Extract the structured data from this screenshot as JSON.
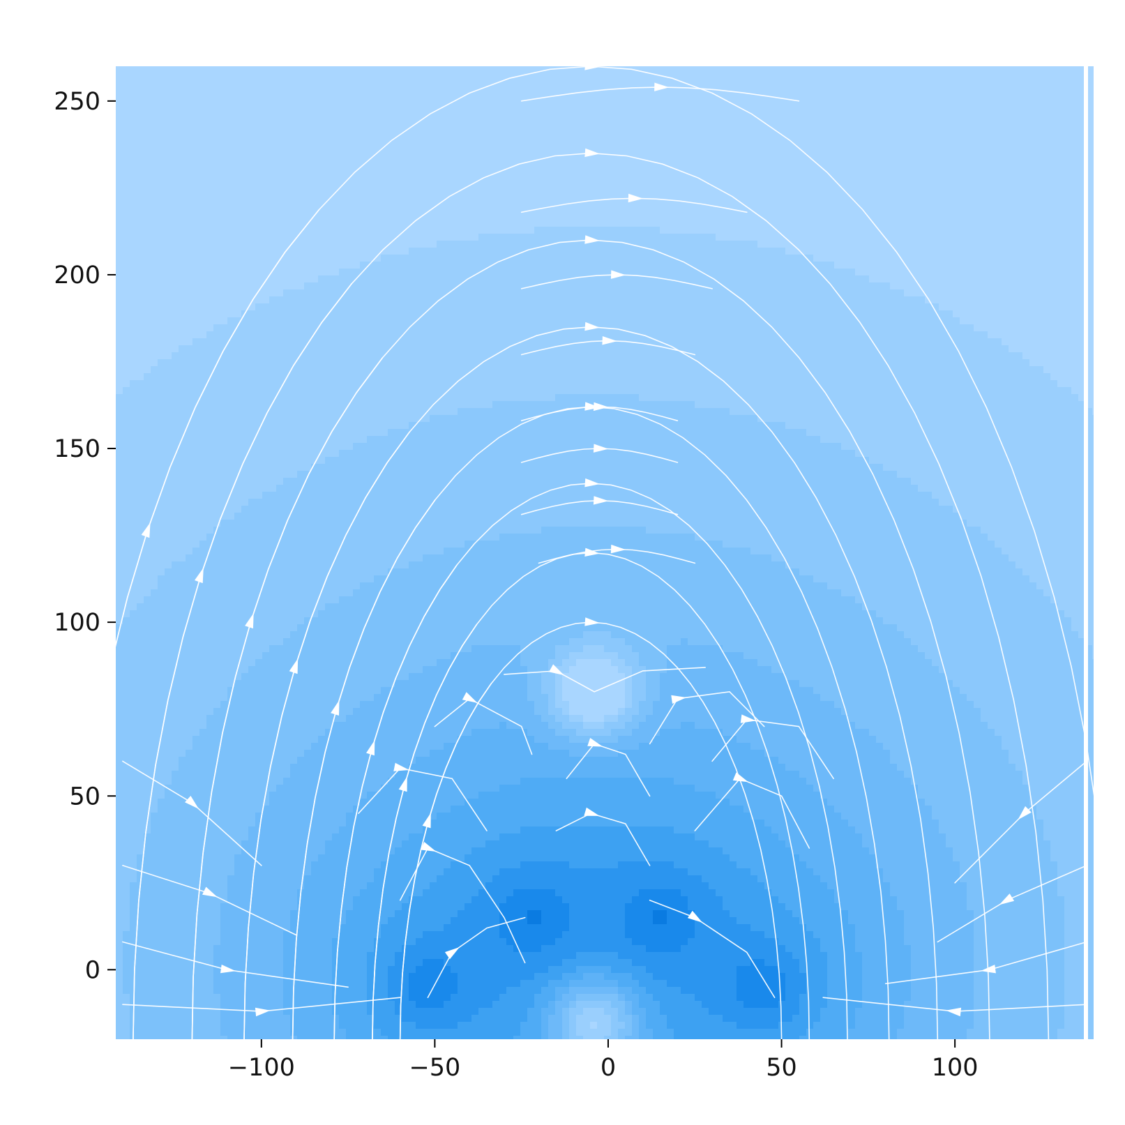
{
  "chart_data": {
    "type": "streamplot",
    "title": "",
    "xlabel": "",
    "ylabel": "",
    "xlim": [
      -142,
      140
    ],
    "ylim": [
      -20,
      260
    ],
    "xticks": [
      -100,
      -50,
      0,
      50,
      100
    ],
    "yticks": [
      0,
      50,
      100,
      150,
      200,
      250
    ],
    "xtick_labels": [
      "−100",
      "−50",
      "0",
      "50",
      "100"
    ],
    "ytick_labels": [
      "0",
      "50",
      "100",
      "150",
      "200",
      "250"
    ],
    "colormap": "Blues (dark near sources, light far away)",
    "stream_color": "#ffffff",
    "background_colors": {
      "far": "#a9d6ff",
      "mid": "#4aa9f5",
      "near": "#0a7fe8",
      "core": "#002a4d"
    },
    "sources": [
      {
        "x": -52,
        "y": -5,
        "kind": "dark pole"
      },
      {
        "x": -22,
        "y": 15,
        "kind": "dark pole"
      },
      {
        "x": 15,
        "y": 15,
        "kind": "dark pole"
      },
      {
        "x": 45,
        "y": -5,
        "kind": "dark pole"
      },
      {
        "x": -4,
        "y": 80,
        "kind": "light null point"
      },
      {
        "x": -4,
        "y": -15,
        "kind": "light null point"
      }
    ],
    "flow": "arched field lines running left to right over the top, converging into the lower poles"
  }
}
